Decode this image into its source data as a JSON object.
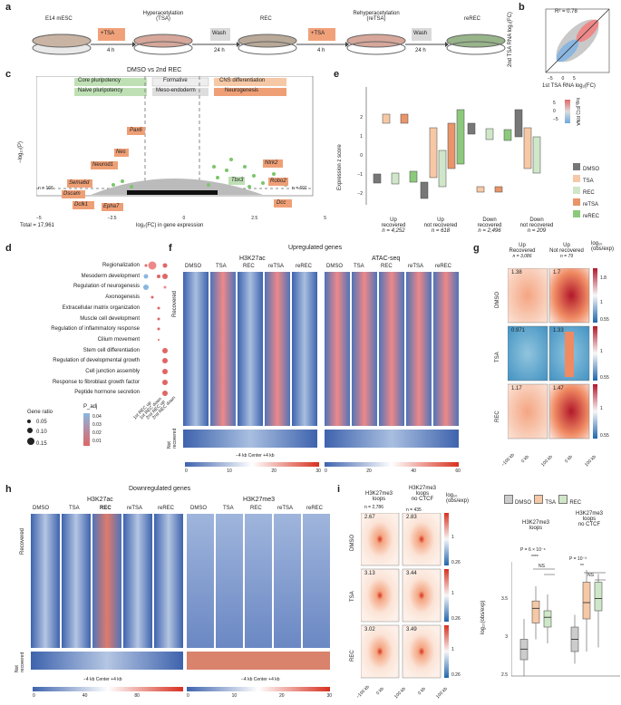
{
  "panel_labels": {
    "a": "a",
    "b": "b",
    "c": "c",
    "d": "d",
    "e": "e",
    "f": "f",
    "g": "g",
    "h": "h",
    "i": "i"
  },
  "a": {
    "steps": [
      "E14 mESC",
      "Hyperacetylation\n(TSA)",
      "REC",
      "Rehyperacetylation\n(reTSA)",
      "reREC"
    ],
    "step1": "E14 mESC",
    "step2": "Hyperacetylation",
    "step2b": "(TSA)",
    "step3": "REC",
    "step4": "Rehyperacetylation",
    "step4b": "(reTSA)",
    "step5": "reREC",
    "tsa_box": "+TSA",
    "tsa_box2": "+TSA",
    "wash1": "Wash",
    "wash2": "Wash",
    "t1": "4 h",
    "t2": "24 h",
    "t3": "4 h",
    "t4": "24 h"
  },
  "b": {
    "r2": "R² = 0.78",
    "xlabel": "1st TSA RNA log₂(FC)",
    "ylabel": "2nd TSA RNA log₂(FC)",
    "ticks_x": [
      "−5",
      "0",
      "5"
    ],
    "ticks_y": [
      "−5",
      "0",
      "5"
    ],
    "cbar_label": "log₂(FC) RNA",
    "cbar_ticks": [
      "5",
      "0",
      "−5"
    ],
    "colors": {
      "pos": "#e06666",
      "neg": "#6fa8dc",
      "mid": "#bbbbbb"
    }
  },
  "c": {
    "title": "DMSO vs 2nd REC",
    "legend": [
      "Core pluripotency",
      "Formative",
      "CNS differentiation",
      "Naive pluripotency",
      "Meso-endoderm",
      "Neurogenesis"
    ],
    "ylabel": "−log₁₀(P)",
    "xlabel": "log₂(FC) in gene expression",
    "x_ticks": [
      "−5",
      "−2.5",
      "0",
      "2.5",
      "5"
    ],
    "n_left": "n = 166",
    "n_right": "n = 601",
    "total": "Total = 17,961",
    "left_genes": [
      "Pax6",
      "Nes",
      "Neurod1",
      "Sema6d",
      "Dscam",
      "Dclk1",
      "Epha7"
    ],
    "right_genes": [
      "Ntrk2",
      "Tbx3",
      "Robo2",
      "Dcc"
    ]
  },
  "d": {
    "terms": [
      "Regionalization",
      "Mesoderm development",
      "Regulation of neurogenesis",
      "Axonogenesis",
      "Extracellular matrix organization",
      "Muscle cell development",
      "Regulation of inflammatory response",
      "Cilium movement",
      "Stem cell differentiation",
      "Regulation of developmental growth",
      "Cell junction assembly",
      "Response to fibroblast growth factor",
      "Peptide hormone secretion"
    ],
    "xcats": [
      "1st REC up",
      "1st REC down",
      "2nd REC up",
      "2nd REC down"
    ],
    "size_title": "Gene ratio",
    "sizes": [
      "0.05",
      "0.10",
      "0.15"
    ],
    "p_title": "P_adj",
    "p_ticks": [
      "0.04",
      "0.03",
      "0.02",
      "0.01"
    ]
  },
  "e": {
    "ylabel": "Expression z score",
    "y_ticks": [
      "2",
      "1",
      "0",
      "−1",
      "−2"
    ],
    "groups": [
      "Up\nrecovered",
      "Up\nnot recovered",
      "Down\nrecovered",
      "Down\nnot recovered"
    ],
    "g1": "Up",
    "g1b": "recovered",
    "g1n": "n = 4,252",
    "g2": "Up",
    "g2b": "not recovered",
    "g2n": "n = 618",
    "g3": "Down",
    "g3b": "recovered",
    "g3n": "n = 2,496",
    "g4": "Down",
    "g4b": "not recovered",
    "g4n": "n = 209",
    "legend": [
      "DMSO",
      "TSA",
      "REC",
      "reTSA",
      "reREC"
    ],
    "colors": [
      "#777777",
      "#f6c8a5",
      "#cfe7c8",
      "#e8956a",
      "#8cc97c"
    ]
  },
  "f": {
    "title": "Upregulated genes",
    "h1": "H3K27ac",
    "h2": "ATAC-seq",
    "cols": [
      "DMSO",
      "TSA",
      "REC",
      "reTSA",
      "reREC"
    ],
    "row1": "Recovered",
    "row2": "Not recovered",
    "axis": "−4 kb Center +4 kb",
    "cbar1": [
      "0",
      "10",
      "20",
      "30"
    ],
    "cbar2": [
      "0",
      "20",
      "40",
      "60"
    ]
  },
  "g": {
    "col1": "Up",
    "col1b": "Recovered",
    "col1n": "n = 3,086",
    "col2": "Up",
    "col2b": "Not recovered",
    "col2n": "n = 79",
    "scale": "log₁₀",
    "scale2": "(obs/exp)",
    "rows": [
      "DMSO",
      "TSA",
      "REC"
    ],
    "vals": [
      "1.38",
      "1.7",
      "0.971",
      "1.33",
      "1.17",
      "1.47"
    ],
    "cb_ticks": [
      "1.8",
      "1",
      "0.55"
    ],
    "x_ticks": [
      "−100 kb",
      "0 kb",
      "100 kb"
    ]
  },
  "h": {
    "title": "Downregulated genes",
    "h1": "H3K27ac",
    "h2": "H3K27me3",
    "cols": [
      "DMSO",
      "TSA",
      "REC",
      "reTSA",
      "reREC"
    ],
    "row1": "Recovered",
    "row2": "Not recovered",
    "axis": "−4 kb Center +4 kb",
    "cbar1": [
      "0",
      "40",
      "80"
    ],
    "cbar2": [
      "0",
      "10",
      "20",
      "30"
    ]
  },
  "i": {
    "c1": "H3K27me3",
    "c1b": "loops",
    "c1n": "n = 2,786",
    "c2": "H3K27me3",
    "c2b": "loops",
    "c2c": "no CTCF",
    "c2n": "n = 435",
    "scale": "log₁₀",
    "scale2": "(obs/exp)",
    "rows": [
      "DMSO",
      "TSA",
      "REC"
    ],
    "vals": [
      "2.67",
      "2.83",
      "3.13",
      "3.44",
      "3.02",
      "3.49"
    ],
    "cb_ticks": [
      "1",
      "0.26"
    ],
    "x_ticks": [
      "−100 kb",
      "0 kb",
      "100 kb"
    ],
    "legend": [
      "DMSO",
      "TSA",
      "REC"
    ],
    "box1_title": "H3K27me3",
    "box1_title2": "loops",
    "box2_title": "H3K27me3",
    "box2_title2": "loops",
    "box2_title3": "no CTCF",
    "ylabel": "log₁₀(obs/exp)",
    "p1": "P = 6 × 10⁻⁶",
    "s1": "****",
    "ns1": "NS",
    "p2": "P = 10⁻³",
    "s2": "**",
    "ns2": "NS",
    "y_ticks": [
      "3.5",
      "3",
      "2.5"
    ]
  },
  "chart_data": [
    {
      "type": "box",
      "title": "H3K27me3 loops",
      "categories": [
        "DMSO",
        "TSA",
        "REC"
      ],
      "median": [
        2.73,
        3.23,
        3.12
      ],
      "q1": [
        2.6,
        3.05,
        3.0
      ],
      "q3": [
        2.85,
        3.32,
        3.2
      ],
      "whisker_low": [
        2.4,
        2.85,
        2.8
      ],
      "whisker_high": [
        3.1,
        3.5,
        3.4
      ],
      "ylim": [
        2.4,
        3.6
      ]
    },
    {
      "type": "box",
      "title": "H3K27me3 loops no CTCF",
      "categories": [
        "DMSO",
        "TSA",
        "REC"
      ],
      "median": [
        2.85,
        3.3,
        3.35
      ],
      "q1": [
        2.7,
        3.1,
        3.2
      ],
      "q3": [
        3.0,
        3.55,
        3.55
      ],
      "whisker_low": [
        2.55,
        2.7,
        2.75
      ],
      "whisker_high": [
        3.15,
        3.7,
        3.65
      ],
      "ylim": [
        2.4,
        3.8
      ]
    }
  ]
}
